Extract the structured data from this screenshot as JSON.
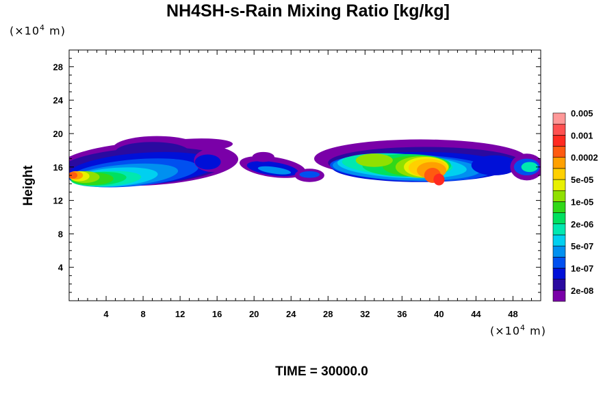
{
  "chart_data": {
    "type": "heatmap",
    "title": "NH4SH-s-Rain Mixing Ratio [kg/kg]",
    "ylabel": "Height",
    "xlabel": "",
    "x_unit": {
      "prefix": "(×10",
      "exp": "4",
      "suffix": " m)"
    },
    "y_unit": {
      "prefix": "(×10",
      "exp": "4",
      "suffix": " m)"
    },
    "xlim": [
      0,
      51
    ],
    "ylim": [
      0,
      30
    ],
    "x_ticks": [
      4,
      8,
      12,
      16,
      20,
      24,
      28,
      32,
      36,
      40,
      44,
      48
    ],
    "y_ticks": [
      4,
      8,
      12,
      16,
      20,
      24,
      28
    ],
    "colorbar": {
      "colors": [
        "#7a00a8",
        "#2a0aa0",
        "#0010d8",
        "#0050f0",
        "#0090f0",
        "#00d0f0",
        "#00e8b0",
        "#00e060",
        "#30d818",
        "#90e000",
        "#e8f000",
        "#ffd000",
        "#ffa000",
        "#ff5a10",
        "#ff2a20",
        "#ff5050",
        "#ff9898"
      ],
      "labels": [
        "2e-08",
        "1e-07",
        "5e-07",
        "2e-06",
        "1e-05",
        "5e-05",
        "0.0002",
        "0.001",
        "0.005"
      ]
    },
    "footer": "TIME = 30000.0"
  }
}
